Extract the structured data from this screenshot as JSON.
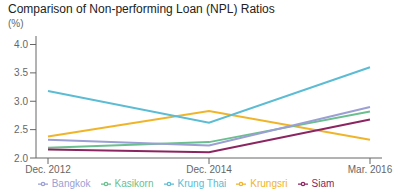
{
  "chart_data": {
    "type": "line",
    "title": "Comparison of Non-performing Loan (NPL) Ratios",
    "ylabel": "(%)",
    "categories": [
      "Dec. 2012",
      "Dec. 2014",
      "Mar. 2016"
    ],
    "series": [
      {
        "name": "Krungsri",
        "color": "#f0b429",
        "values": [
          2.38,
          2.83,
          2.32
        ]
      },
      {
        "name": "Kasikorn",
        "color": "#6abf8e",
        "values": [
          2.18,
          2.28,
          2.82
        ]
      },
      {
        "name": "Siam",
        "color": "#8b2561",
        "values": [
          2.15,
          2.1,
          2.68
        ]
      },
      {
        "name": "Bangkok",
        "color": "#9b9fd4",
        "values": [
          2.32,
          2.22,
          2.9
        ]
      },
      {
        "name": "Krung Thai",
        "color": "#5bbcd4",
        "values": [
          3.18,
          2.62,
          3.6
        ]
      }
    ],
    "ylim": [
      2.0,
      4.15
    ],
    "yticks": [
      {
        "value": 2.0,
        "label": "2.0"
      },
      {
        "value": 2.5,
        "label": "2.5"
      },
      {
        "value": 3.0,
        "label": "3.0"
      },
      {
        "value": 3.5,
        "label": "3.5"
      },
      {
        "value": 4.0,
        "label": "4.0"
      }
    ],
    "grid": false,
    "legend": "bottom"
  }
}
